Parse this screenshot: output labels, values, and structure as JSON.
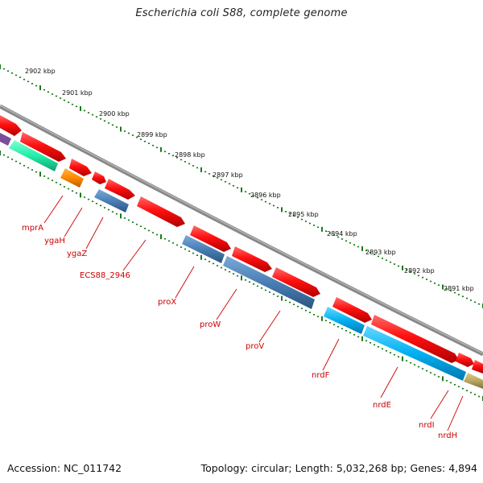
{
  "title": "Escherichia coli S88, complete genome",
  "footer": {
    "accession": "Accession: NC_011742",
    "summary": "Topology: circular; Length: 5,032,268 bp; Genes: 4,894"
  },
  "kbp_ticks": [
    "2902 kbp",
    "2901 kbp",
    "2900 kbp",
    "2899 kbp",
    "2898 kbp",
    "2897 kbp",
    "2896 kbp",
    "2895 kbp",
    "2894 kbp",
    "2893 kbp",
    "2892 kbp",
    "2891 kbp"
  ],
  "gene_labels": [
    "mprA",
    "ygaH",
    "ygaZ",
    "ECS88_2946",
    "proX",
    "proW",
    "proV",
    "nrdF",
    "nrdE",
    "nrdI",
    "nrdH"
  ],
  "colors": {
    "forward_gene": "#ff0000",
    "reverse_gene_steel": "#4a7fb5",
    "reverse_gene_cyan": "#00aaee",
    "reverse_gene_orange": "#ff8800",
    "reverse_gene_teal": "#22eeaa",
    "reverse_gene_olive": "#b8a860",
    "backbone": "#888888",
    "tick_marks": "#1a7a1a",
    "label": "#cc0000"
  }
}
